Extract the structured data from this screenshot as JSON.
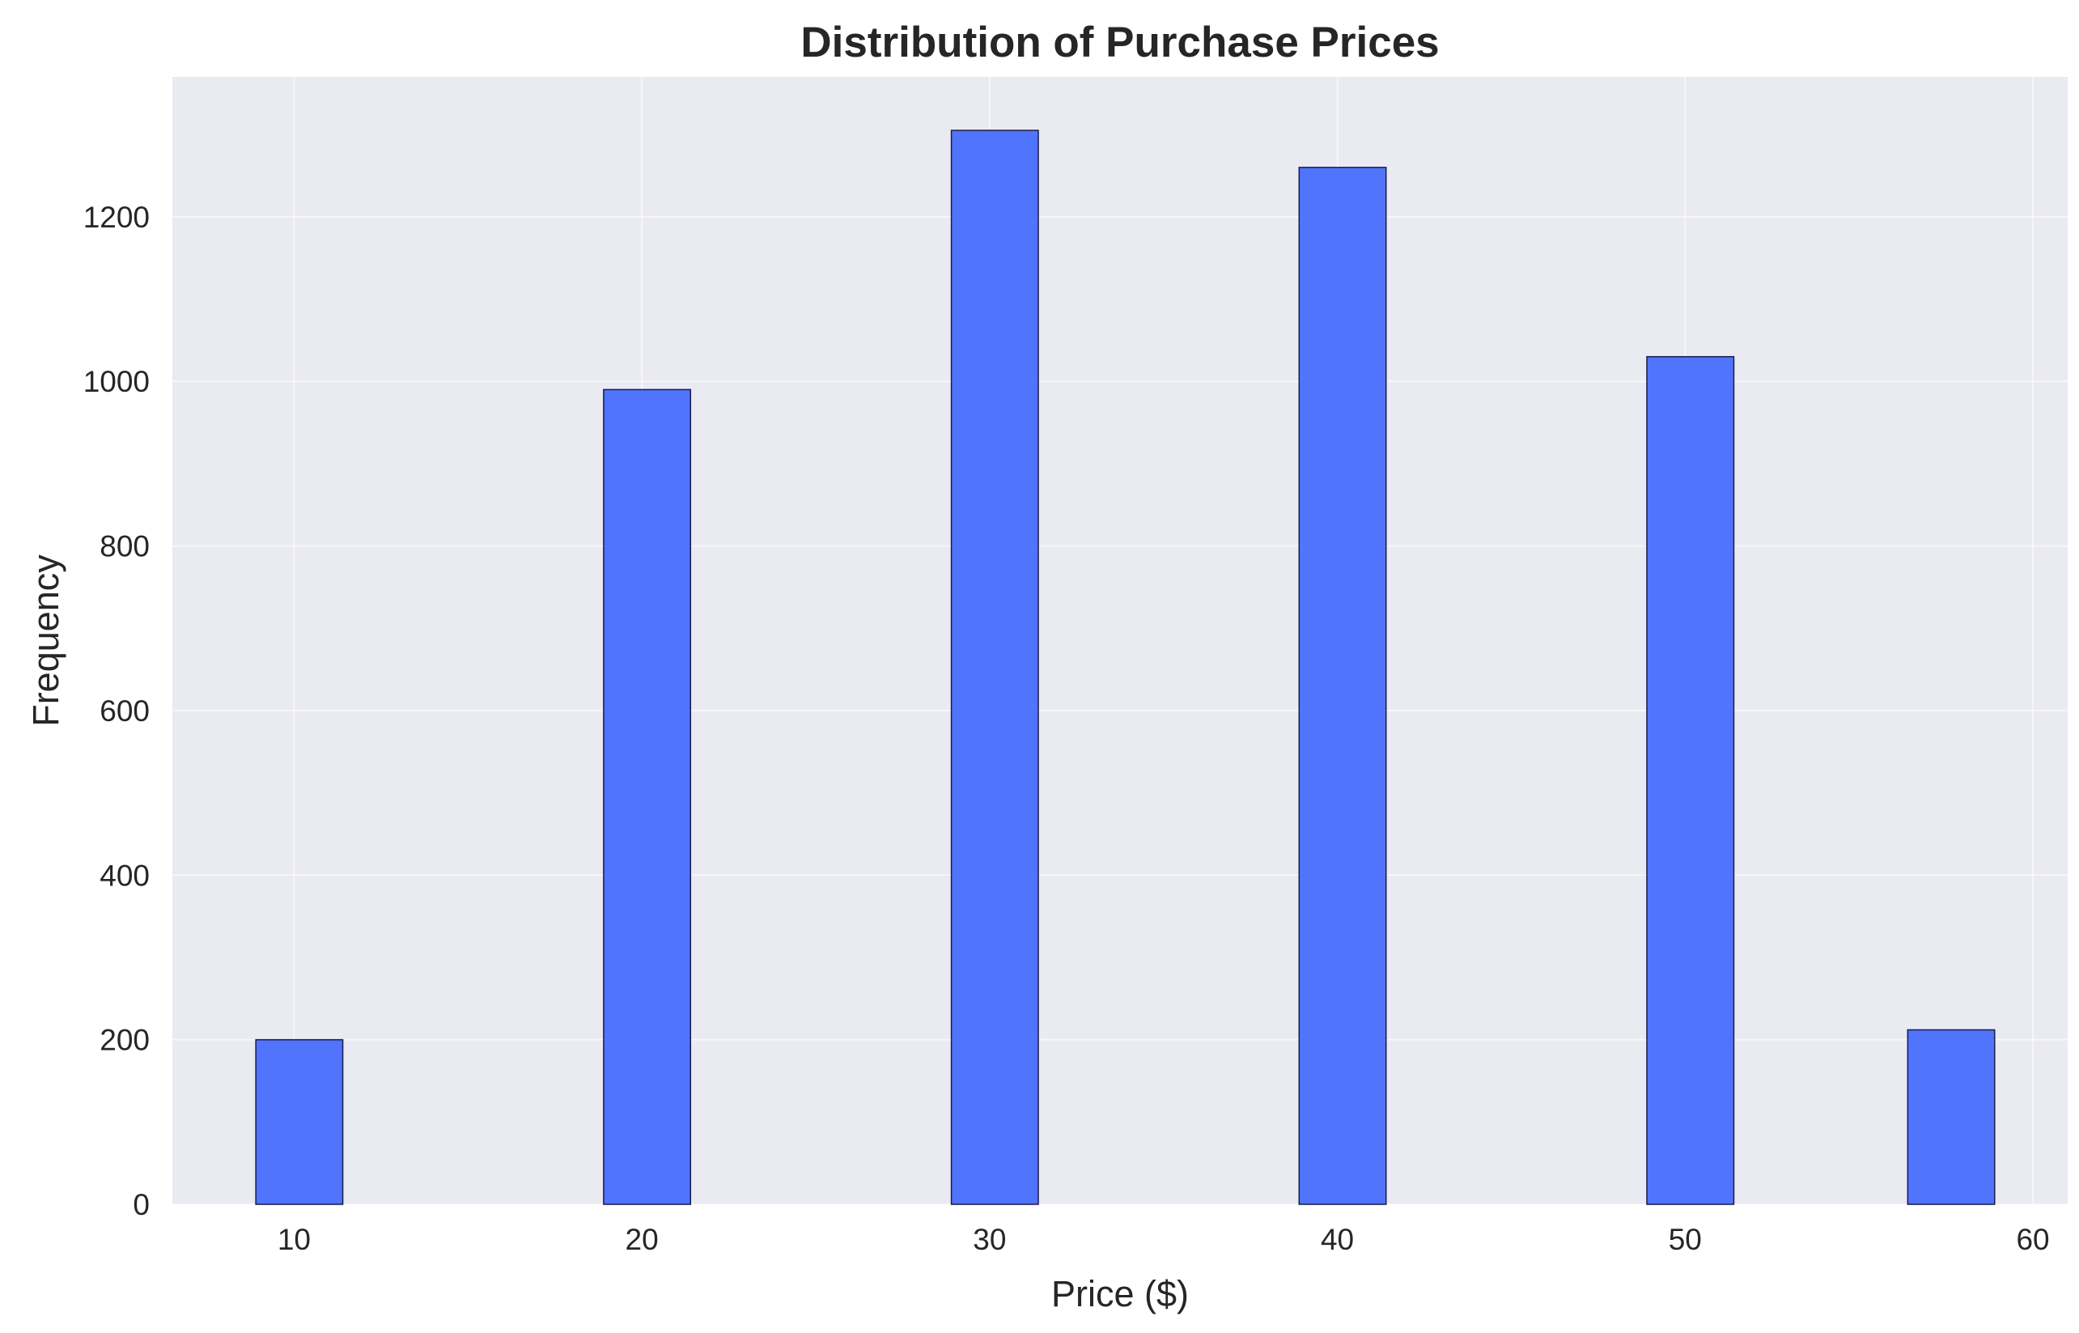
{
  "chart_data": {
    "type": "bar",
    "title": "Distribution of Purchase Prices",
    "xlabel": "Price ($)",
    "ylabel": "Frequency",
    "xlim": [
      6.5,
      61
    ],
    "ylim": [
      0,
      1370
    ],
    "xticks": [
      10,
      20,
      30,
      40,
      50,
      60
    ],
    "yticks": [
      0,
      200,
      400,
      600,
      800,
      1000,
      1200
    ],
    "grid": true,
    "bars": [
      {
        "x0": 8.9,
        "x1": 11.4,
        "value": 200
      },
      {
        "x0": 18.9,
        "x1": 21.4,
        "value": 990
      },
      {
        "x0": 28.9,
        "x1": 31.4,
        "value": 1305
      },
      {
        "x0": 38.9,
        "x1": 41.4,
        "value": 1260
      },
      {
        "x0": 48.9,
        "x1": 51.4,
        "value": 1030
      },
      {
        "x0": 56.4,
        "x1": 58.9,
        "value": 212
      }
    ],
    "colors": {
      "bar": "#4a70fb",
      "plot_background": "#eaeaf2",
      "grid": "#ffffff"
    }
  }
}
